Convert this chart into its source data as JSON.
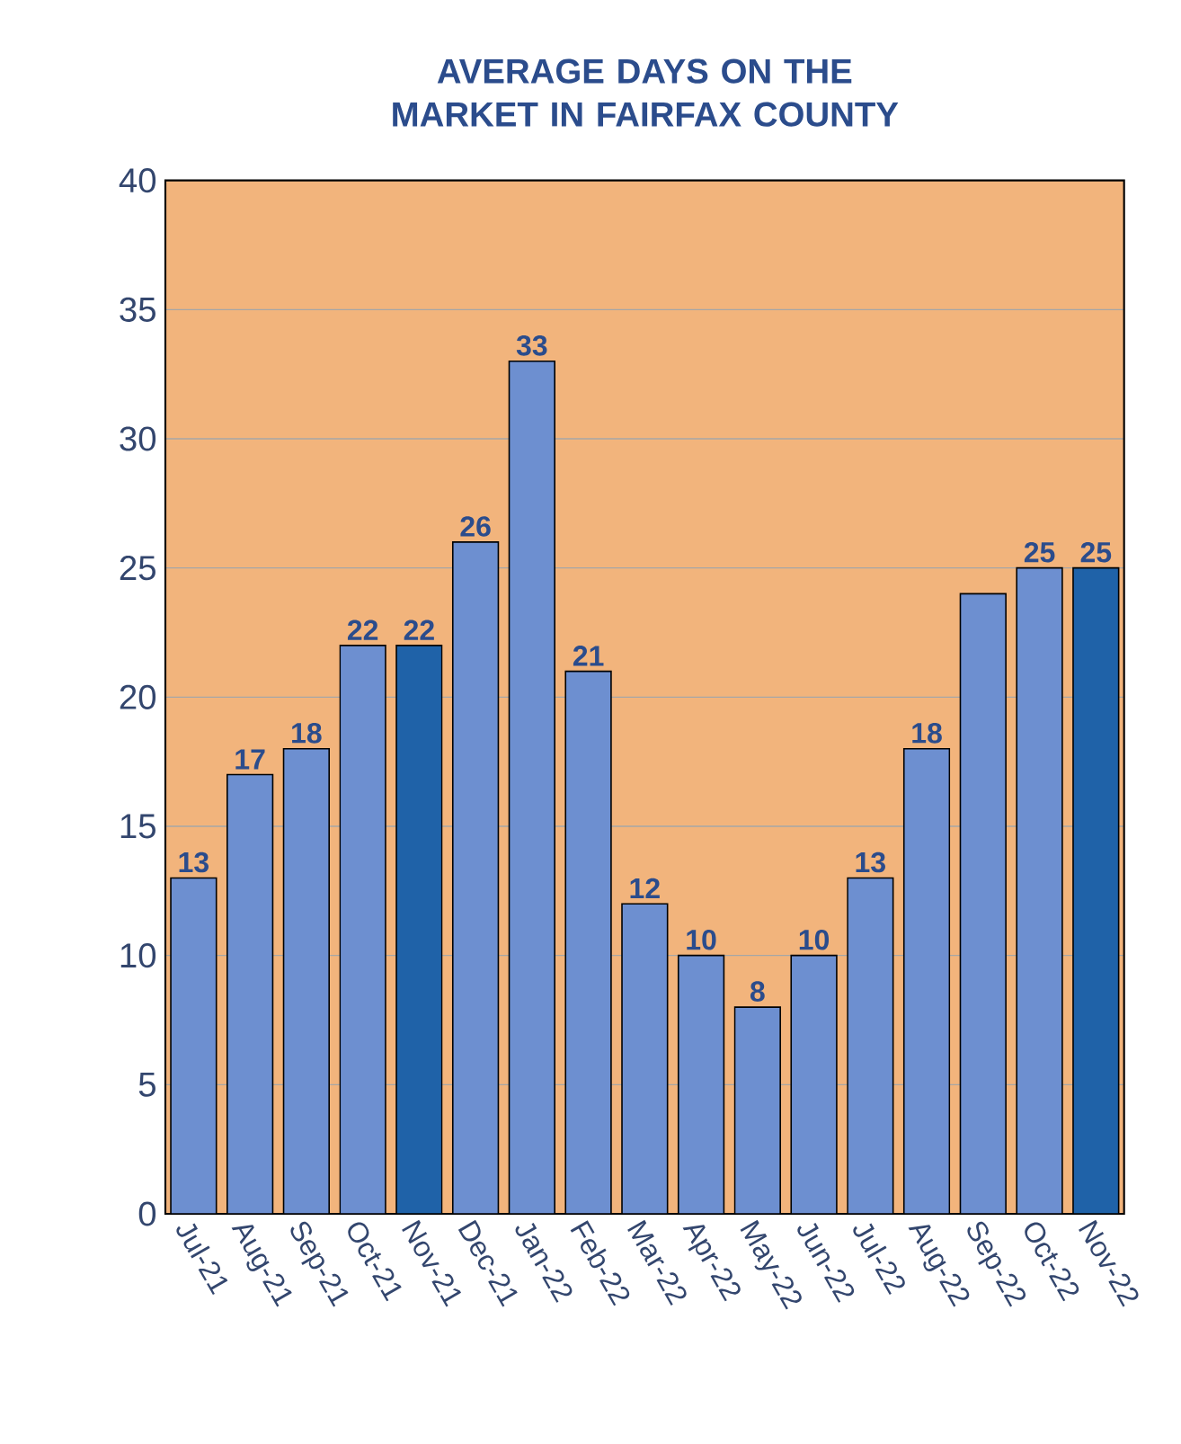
{
  "chart_data": {
    "type": "bar",
    "title": "AVERAGE DAYS ON THE MARKET IN FAIRFAX COUNTY",
    "categories": [
      "Jul-21",
      "Aug-21",
      "Sep-21",
      "Oct-21",
      "Nov-21",
      "Dec-21",
      "Jan-22",
      "Feb-22",
      "Mar-22",
      "Apr-22",
      "May-22",
      "Jun-22",
      "Jul-22",
      "Aug-22",
      "Sep-22",
      "Oct-22",
      "Nov-22"
    ],
    "values": [
      13,
      17,
      18,
      22,
      22,
      26,
      33,
      21,
      12,
      10,
      8,
      10,
      13,
      18,
      24,
      25,
      25
    ],
    "colors": [
      "#6d8fd0",
      "#6d8fd0",
      "#6d8fd0",
      "#6d8fd0",
      "#1f62a8",
      "#6d8fd0",
      "#6d8fd0",
      "#6d8fd0",
      "#6d8fd0",
      "#6d8fd0",
      "#6d8fd0",
      "#6d8fd0",
      "#6d8fd0",
      "#6d8fd0",
      "#6d8fd0",
      "#6d8fd0",
      "#1f62a8"
    ],
    "value_labels": [
      "13",
      "17",
      "18",
      "22",
      "22",
      "26",
      "33",
      "21",
      "12",
      "10",
      "8",
      "10",
      "13",
      "18",
      null,
      "25",
      "25"
    ],
    "ylim": [
      0,
      40
    ],
    "yticks": [
      0,
      5,
      10,
      15,
      20,
      25,
      30,
      35,
      40
    ],
    "grid": "y"
  }
}
